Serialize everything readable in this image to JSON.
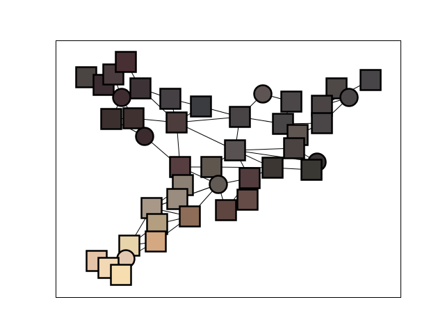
{
  "figure": {
    "type": "network-graph",
    "nodes": [
      {
        "id": 0,
        "shape": "square",
        "color": "#4a4442"
      },
      {
        "id": 1,
        "shape": "square",
        "color": "#3a2c30"
      },
      {
        "id": 2,
        "shape": "square",
        "color": "#4a3c3e"
      },
      {
        "id": 3,
        "shape": "square",
        "color": "#472f33"
      },
      {
        "id": 4,
        "shape": "circle",
        "color": "#3e2c30"
      },
      {
        "id": 5,
        "shape": "square",
        "color": "#3d3336"
      },
      {
        "id": 6,
        "shape": "square",
        "color": "#454043"
      },
      {
        "id": 7,
        "shape": "square",
        "color": "#3a3c40"
      },
      {
        "id": 8,
        "shape": "square",
        "color": "#3b302e"
      },
      {
        "id": 9,
        "shape": "square",
        "color": "#3f312f"
      },
      {
        "id": 10,
        "shape": "circle",
        "color": "#3b2a2e"
      },
      {
        "id": 11,
        "shape": "square",
        "color": "#4c3d3c"
      },
      {
        "id": 12,
        "shape": "square",
        "color": "#4e4847"
      },
      {
        "id": 13,
        "shape": "circle",
        "color": "#5d5453"
      },
      {
        "id": 14,
        "shape": "square",
        "color": "#484345"
      },
      {
        "id": 15,
        "shape": "square",
        "color": "#4b4749"
      },
      {
        "id": 16,
        "shape": "circle",
        "color": "#4a4648"
      },
      {
        "id": 17,
        "shape": "square",
        "color": "#484548"
      },
      {
        "id": 18,
        "shape": "square",
        "color": "#484546"
      },
      {
        "id": 19,
        "shape": "square",
        "color": "#4a4444"
      },
      {
        "id": 20,
        "shape": "square",
        "color": "#4a4546"
      },
      {
        "id": 21,
        "shape": "square",
        "color": "#5f5652"
      },
      {
        "id": 22,
        "shape": "square",
        "color": "#4a4342"
      },
      {
        "id": 23,
        "shape": "circle",
        "color": "#3a3435"
      },
      {
        "id": 24,
        "shape": "square",
        "color": "#585252"
      },
      {
        "id": 25,
        "shape": "square",
        "color": "#3b3631"
      },
      {
        "id": 26,
        "shape": "square",
        "color": "#393832"
      },
      {
        "id": 27,
        "shape": "square",
        "color": "#553d40"
      },
      {
        "id": 28,
        "shape": "square",
        "color": "#5f574e"
      },
      {
        "id": 29,
        "shape": "circle",
        "color": "#625a55"
      },
      {
        "id": 30,
        "shape": "square",
        "color": "#523c3e"
      },
      {
        "id": 31,
        "shape": "square",
        "color": "#8c8074"
      },
      {
        "id": 32,
        "shape": "square",
        "color": "#9a8c7e"
      },
      {
        "id": 33,
        "shape": "square",
        "color": "#654c46"
      },
      {
        "id": 34,
        "shape": "square",
        "color": "#5e4540"
      },
      {
        "id": 35,
        "shape": "square",
        "color": "#a89888"
      },
      {
        "id": 36,
        "shape": "square",
        "color": "#8d6c58"
      },
      {
        "id": 37,
        "shape": "square",
        "color": "#b39e80"
      },
      {
        "id": 38,
        "shape": "square",
        "color": "#d4a880"
      },
      {
        "id": 39,
        "shape": "square",
        "color": "#e8d4aa"
      },
      {
        "id": 40,
        "shape": "circle",
        "color": "#e2c8b0"
      },
      {
        "id": 41,
        "shape": "square",
        "color": "#e6c4a8"
      },
      {
        "id": 42,
        "shape": "square",
        "color": "#f2d8b4"
      },
      {
        "id": 43,
        "shape": "square",
        "color": "#f6deb0"
      }
    ],
    "edges": [
      [
        0,
        1
      ],
      [
        1,
        2
      ],
      [
        1,
        3
      ],
      [
        2,
        3
      ],
      [
        2,
        4
      ],
      [
        1,
        4
      ],
      [
        4,
        5
      ],
      [
        3,
        5
      ],
      [
        5,
        6
      ],
      [
        4,
        8
      ],
      [
        4,
        9
      ],
      [
        8,
        9
      ],
      [
        9,
        10
      ],
      [
        8,
        10
      ],
      [
        5,
        11
      ],
      [
        6,
        11
      ],
      [
        9,
        11
      ],
      [
        10,
        27
      ],
      [
        11,
        27
      ],
      [
        11,
        7
      ],
      [
        11,
        14
      ],
      [
        6,
        7
      ],
      [
        7,
        14
      ],
      [
        14,
        13
      ],
      [
        14,
        18
      ],
      [
        13,
        15
      ],
      [
        15,
        18
      ],
      [
        16,
        19
      ],
      [
        16,
        12
      ],
      [
        16,
        20
      ],
      [
        12,
        19
      ],
      [
        17,
        19
      ],
      [
        19,
        20
      ],
      [
        18,
        20
      ],
      [
        18,
        21
      ],
      [
        20,
        21
      ],
      [
        21,
        22
      ],
      [
        22,
        23
      ],
      [
        22,
        26
      ],
      [
        23,
        26
      ],
      [
        25,
        26
      ],
      [
        24,
        25
      ],
      [
        24,
        23
      ],
      [
        11,
        24
      ],
      [
        14,
        24
      ],
      [
        24,
        28
      ],
      [
        24,
        30
      ],
      [
        24,
        22
      ],
      [
        27,
        28
      ],
      [
        27,
        31
      ],
      [
        27,
        29
      ],
      [
        28,
        29
      ],
      [
        29,
        30
      ],
      [
        29,
        32
      ],
      [
        29,
        36
      ],
      [
        29,
        35
      ],
      [
        29,
        34
      ],
      [
        30,
        25
      ],
      [
        30,
        33
      ],
      [
        30,
        34
      ],
      [
        28,
        25
      ],
      [
        31,
        32
      ],
      [
        32,
        35
      ],
      [
        32,
        36
      ],
      [
        35,
        36
      ],
      [
        35,
        37
      ],
      [
        36,
        37
      ],
      [
        37,
        38
      ],
      [
        36,
        38
      ],
      [
        38,
        39
      ],
      [
        37,
        39
      ],
      [
        39,
        40
      ],
      [
        38,
        40
      ],
      [
        40,
        41
      ],
      [
        40,
        42
      ],
      [
        40,
        43
      ],
      [
        41,
        42
      ],
      [
        42,
        43
      ],
      [
        39,
        42
      ],
      [
        35,
        39
      ],
      [
        31,
        35
      ]
    ]
  }
}
